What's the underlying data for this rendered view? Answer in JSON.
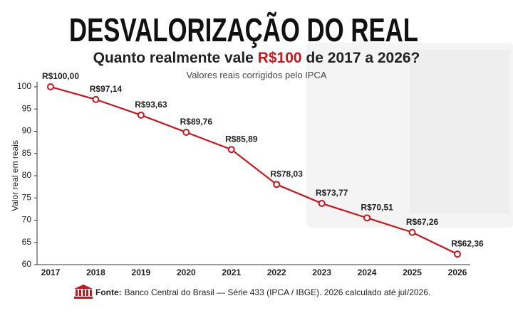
{
  "chart_data": {
    "type": "line",
    "title": "DESVALORIZAÇÃO DO REAL",
    "subtitle": [
      "Quanto realmente vale",
      "R$100",
      "de 2017 a 2026?"
    ],
    "note": "Valores reais corrigidos pelo IPCA",
    "y_label": "Valor real em reais",
    "categories": [
      "2017",
      "2018",
      "2019",
      "2020",
      "2021",
      "2022",
      "2023",
      "2024",
      "2025",
      "2026"
    ],
    "values": [
      100,
      97.14,
      93.63,
      89.76,
      85.89,
      78.03,
      73.77,
      70.51,
      67.26,
      62.36
    ],
    "value_labels": [
      "R$100,00",
      "R$97,14",
      "R$93,63",
      "R$89,76",
      "R$85,89",
      "R$78,03",
      "R$73,77",
      "R$70,51",
      "R$67,26",
      "R$62,36"
    ],
    "color": "#c8161d",
    "ylim": [
      60,
      100
    ],
    "yticks": [
      60,
      65,
      70,
      75,
      80,
      85,
      90,
      95,
      100
    ],
    "grid": false,
    "source_label": "Fonte:",
    "source": "Banco Central do Brasil — Série 433 (IPCA / IBGE). 2026 calculado até jul/2026."
  }
}
